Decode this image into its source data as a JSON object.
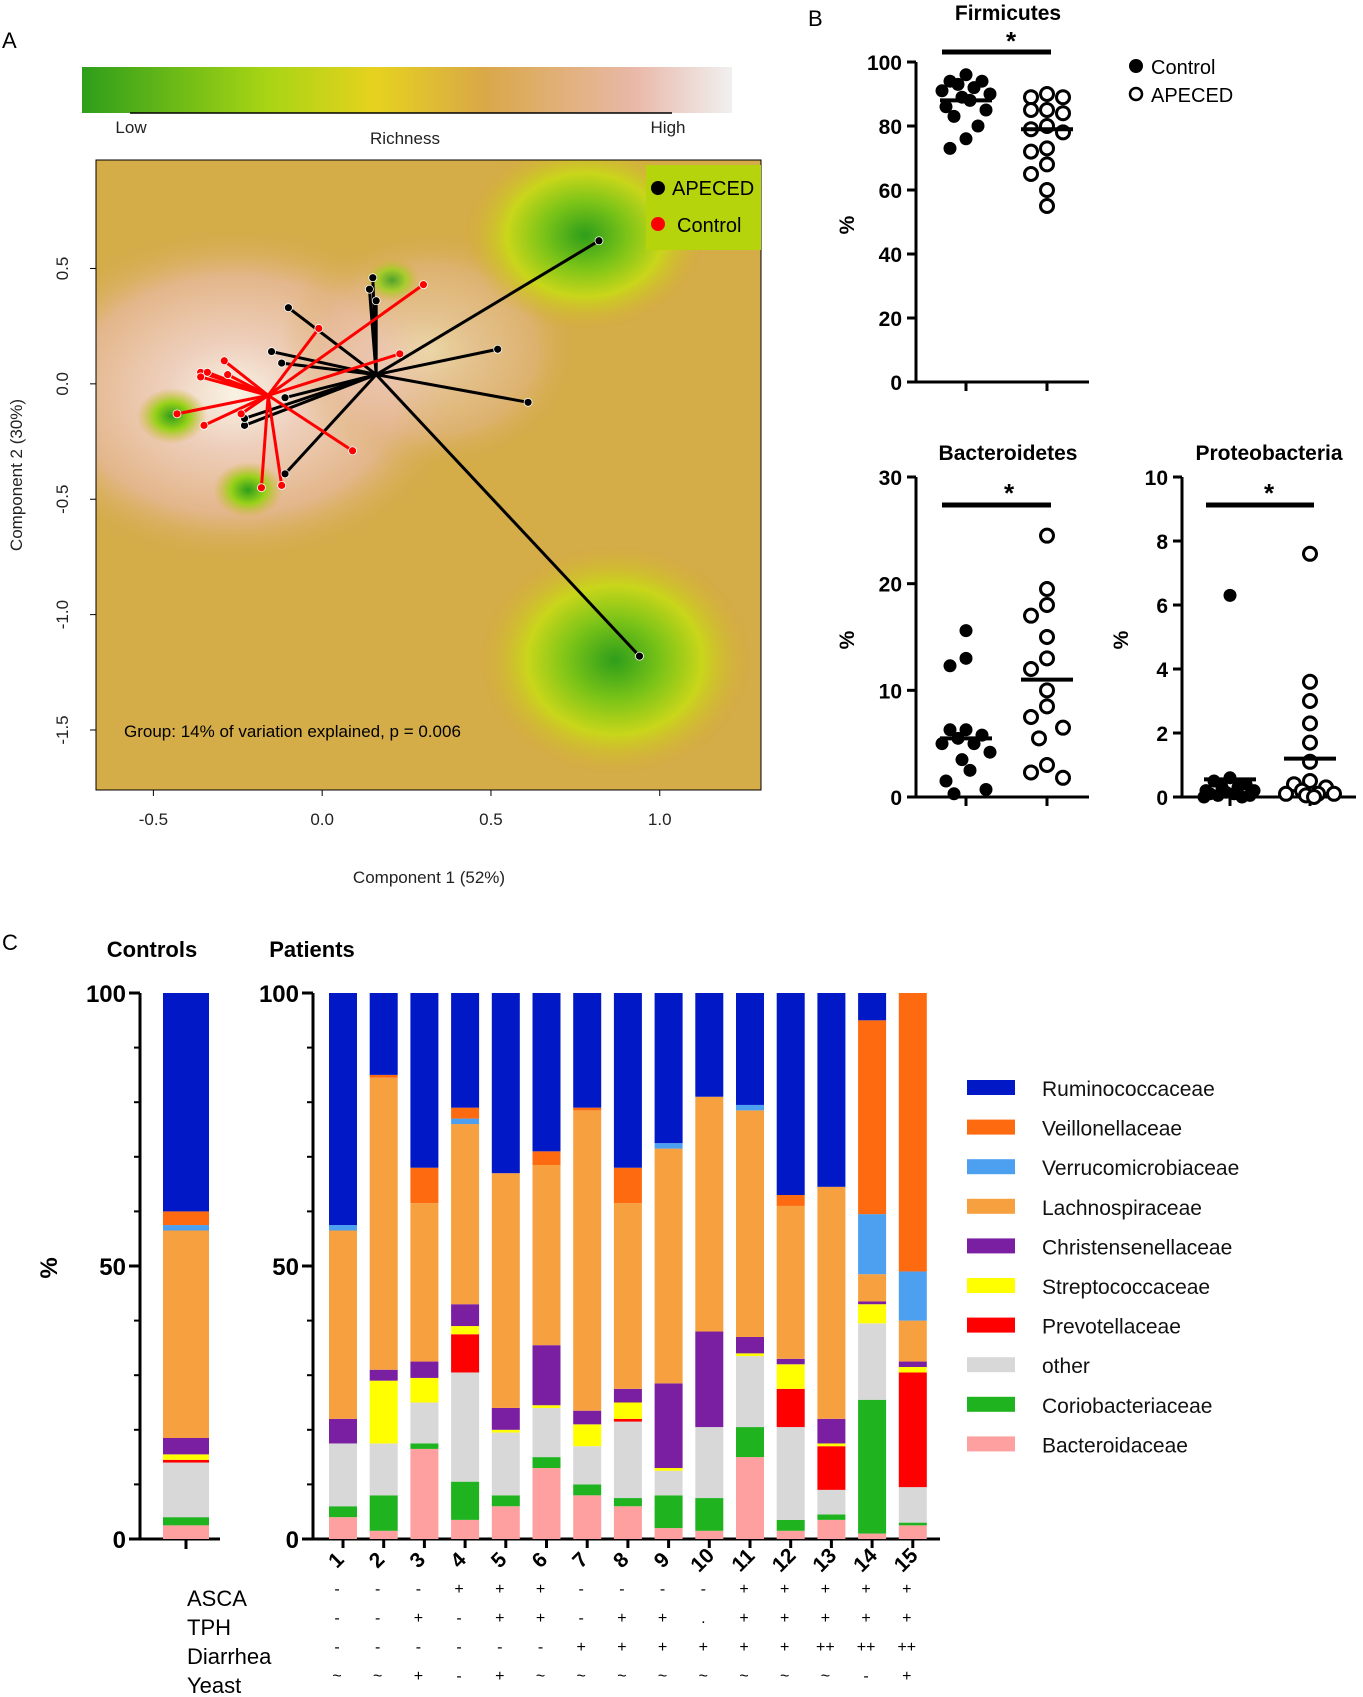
{
  "figure": {
    "panel_labels": {
      "a": "A",
      "b": "B",
      "c": "C"
    }
  },
  "chart_data": [
    {
      "id": "A",
      "type": "scatter",
      "title": "",
      "xlabel": "Component 1 (52%)",
      "ylabel": "Component 2 (30%)",
      "xlim": [
        -0.67,
        1.3
      ],
      "ylim": [
        -1.76,
        0.97
      ],
      "xticks": [
        "-0.5",
        "0.0",
        "0.5",
        "1.0"
      ],
      "xtick_values": [
        -0.5,
        0.0,
        0.5,
        1.0
      ],
      "yticks": [
        "0.5",
        "0.0",
        "-0.5",
        "-1.0",
        "-1.5"
      ],
      "ytick_values": [
        0.5,
        0.0,
        -0.5,
        -1.0,
        -1.5
      ],
      "colorbar": {
        "low": "Low",
        "high": "High",
        "title": "Richness",
        "colors": [
          "#2e9e1a",
          "#a6d414",
          "#e6d21e",
          "#d9a848",
          "#e9b8a8",
          "#f0f0f0"
        ]
      },
      "legend": [
        {
          "label": "APECED",
          "color": "#000000"
        },
        {
          "label": "Control",
          "color": "#ff0000"
        }
      ],
      "annotation": "Group: 14%  of variation explained, p = 0.006",
      "centroids": {
        "APECED": [
          0.16,
          0.04
        ],
        "Control": [
          -0.16,
          -0.05
        ]
      },
      "series": [
        {
          "name": "APECED",
          "color": "#000000",
          "points": [
            [
              0.82,
              0.62
            ],
            [
              0.94,
              -1.18
            ],
            [
              0.61,
              -0.08
            ],
            [
              0.52,
              0.15
            ],
            [
              0.15,
              0.46
            ],
            [
              0.14,
              0.41
            ],
            [
              0.16,
              0.36
            ],
            [
              -0.1,
              0.33
            ],
            [
              -0.15,
              0.14
            ],
            [
              -0.12,
              0.09
            ],
            [
              -0.23,
              -0.18
            ],
            [
              -0.23,
              -0.15
            ],
            [
              -0.11,
              -0.06
            ],
            [
              -0.11,
              -0.39
            ]
          ]
        },
        {
          "name": "Control",
          "color": "#ff0000",
          "points": [
            [
              0.3,
              0.43
            ],
            [
              -0.01,
              0.24
            ],
            [
              0.23,
              0.13
            ],
            [
              -0.29,
              0.1
            ],
            [
              -0.36,
              0.05
            ],
            [
              -0.36,
              0.03
            ],
            [
              -0.34,
              0.05
            ],
            [
              -0.28,
              0.04
            ],
            [
              -0.43,
              -0.13
            ],
            [
              -0.35,
              -0.18
            ],
            [
              -0.24,
              -0.13
            ],
            [
              0.09,
              -0.29
            ],
            [
              -0.18,
              -0.45
            ],
            [
              -0.12,
              -0.44
            ]
          ]
        }
      ]
    },
    {
      "id": "B1",
      "type": "scatter",
      "title": "Firmicutes",
      "ylabel": "%",
      "ylim": [
        0,
        100
      ],
      "yticks": [
        0,
        20,
        40,
        60,
        80,
        100
      ],
      "groups": [
        "Control",
        "APECED"
      ],
      "significance": "*",
      "legend": [
        {
          "label": "Control",
          "marker": "filled"
        },
        {
          "label": "APECED",
          "marker": "open"
        }
      ],
      "series": [
        {
          "name": "Control",
          "marker": "filled",
          "median": 88,
          "values": [
            96,
            94,
            94,
            93,
            92,
            91,
            90,
            89,
            88,
            86,
            85,
            83,
            80,
            76,
            73
          ]
        },
        {
          "name": "APECED",
          "marker": "open",
          "median": 79,
          "values": [
            90,
            89,
            89,
            85,
            85,
            84,
            80,
            79,
            78,
            73,
            72,
            68,
            65,
            60,
            55
          ]
        }
      ]
    },
    {
      "id": "B2",
      "type": "scatter",
      "title": "Bacteroidetes",
      "ylabel": "%",
      "ylim": [
        0,
        30
      ],
      "yticks": [
        0,
        10,
        20,
        30
      ],
      "groups": [
        "Control",
        "APECED"
      ],
      "significance": "*",
      "series": [
        {
          "name": "Control",
          "marker": "filled",
          "median": 5.5,
          "values": [
            15.6,
            13.0,
            12.3,
            6.3,
            6.3,
            5.8,
            5.5,
            5.0,
            5.0,
            4.2,
            3.5,
            2.5,
            1.5,
            0.7,
            0.3
          ]
        },
        {
          "name": "APECED",
          "marker": "open",
          "median": 11,
          "values": [
            24.5,
            19.5,
            18.0,
            17.0,
            15.0,
            13.0,
            12.0,
            10.0,
            8.5,
            7.5,
            6.5,
            5.5,
            3.0,
            2.3,
            1.8
          ]
        }
      ]
    },
    {
      "id": "B3",
      "type": "scatter",
      "title": "Proteobacteria",
      "ylabel": "%",
      "ylim": [
        0,
        10
      ],
      "yticks": [
        0,
        2,
        4,
        6,
        8,
        10
      ],
      "groups": [
        "Control",
        "APECED"
      ],
      "significance": "*",
      "series": [
        {
          "name": "Control",
          "marker": "filled",
          "median": 0.55,
          "values": [
            6.3,
            0.6,
            0.5,
            0.4,
            0.3,
            0.3,
            0.2,
            0.2,
            0.15,
            0.1,
            0.1,
            0.05,
            0.05,
            0.0,
            0.0
          ]
        },
        {
          "name": "APECED",
          "marker": "open",
          "median": 1.2,
          "values": [
            7.6,
            3.6,
            3.0,
            2.3,
            1.7,
            1.1,
            0.5,
            0.4,
            0.3,
            0.2,
            0.1,
            0.1,
            0.1,
            0.05,
            0.0
          ]
        }
      ]
    },
    {
      "id": "C",
      "type": "bar",
      "stacked": true,
      "controls_title": "Controls",
      "patients_title": "Patients",
      "ylabel": "%",
      "ylim": [
        0,
        100
      ],
      "yticks": [
        0,
        50,
        100
      ],
      "families": [
        "Bacteroidaceae",
        "Coriobacteriaceae",
        "other",
        "Prevotellaceae",
        "Streptococcaceae",
        "Christensenellaceae",
        "Lachnospiraceae",
        "Verrucomicrobiaceae",
        "Veillonellaceae",
        "Ruminococcaceae"
      ],
      "colors": [
        "#ffa0a0",
        "#1fb31f",
        "#d8d8d8",
        "#ff0000",
        "#ffff00",
        "#7a1fa2",
        "#f7a040",
        "#4d9ff0",
        "#fd6a10",
        "#0018c6"
      ],
      "legend": [
        "Ruminococcaceae",
        "Veillonellaceae",
        "Verrucomicrobiaceae",
        "Lachnospiraceae",
        "Christensenellaceae",
        "Streptococcaceae",
        "Prevotellaceae",
        "other",
        "Coriobacteriaceae",
        "Bacteroidaceae"
      ],
      "controls": {
        "values": [
          2.5,
          1.5,
          10,
          0.5,
          1,
          3,
          38,
          1,
          2.5,
          40
        ]
      },
      "categories": [
        "1",
        "2",
        "3",
        "4",
        "5",
        "6",
        "7",
        "8",
        "9",
        "10",
        "11",
        "12",
        "13",
        "14",
        "15"
      ],
      "patients": [
        [
          4,
          2,
          11.5,
          0,
          0,
          4.5,
          34.5,
          1,
          0,
          42.5
        ],
        [
          1.5,
          6.5,
          9.5,
          0,
          11.5,
          2,
          53.5,
          0,
          0.5,
          15
        ],
        [
          16.5,
          1,
          7.5,
          0,
          4.5,
          3,
          29,
          0,
          6.5,
          32
        ],
        [
          3.5,
          7,
          20,
          7,
          1.5,
          4,
          33,
          1,
          2,
          21
        ],
        [
          6,
          2,
          11.5,
          0,
          0.5,
          4,
          43,
          0,
          0,
          33
        ],
        [
          13,
          2,
          9,
          0,
          0.5,
          11,
          33,
          0,
          2.5,
          29
        ],
        [
          8,
          2,
          7,
          0,
          4,
          2.5,
          55,
          0,
          0.5,
          21
        ],
        [
          6,
          1.5,
          14,
          0.5,
          3,
          2.5,
          34,
          0,
          6.5,
          32
        ],
        [
          2,
          6,
          4.5,
          0,
          0.5,
          15.5,
          43,
          1,
          0,
          27.5
        ],
        [
          1.5,
          6,
          13,
          0,
          0,
          17.5,
          43,
          0,
          0,
          19
        ],
        [
          15,
          5.5,
          13,
          0,
          0.5,
          3,
          41.5,
          1,
          0,
          20.5
        ],
        [
          1.5,
          2,
          17,
          7,
          4.5,
          1,
          28,
          0,
          2,
          37
        ],
        [
          3.5,
          1,
          4.5,
          8,
          0.5,
          4.5,
          42.5,
          0,
          0,
          35.5
        ],
        [
          1,
          24.5,
          14,
          0,
          3.5,
          0.5,
          5,
          11,
          35.5,
          5
        ],
        [
          2.5,
          0.5,
          6.5,
          21,
          1,
          1,
          7.5,
          9,
          51,
          0
        ]
      ],
      "clinical": {
        "rows": [
          "ASCA",
          "TPH",
          "Diarrhea",
          "Yeast"
        ],
        "values": [
          [
            "-",
            "-",
            "-",
            "+",
            "+",
            "+",
            "-",
            "-",
            "-",
            "-",
            "+",
            "+",
            "+",
            "+",
            "+"
          ],
          [
            "-",
            "-",
            "+",
            "-",
            "+",
            "+",
            "-",
            "+",
            "+",
            ".",
            "+",
            "+",
            "+",
            "+",
            "+"
          ],
          [
            "-",
            "-",
            "-",
            "-",
            "-",
            "-",
            "+",
            "+",
            "+",
            "+",
            "+",
            "+",
            "++",
            "++",
            "++"
          ],
          [
            "~",
            "~",
            "+",
            "-",
            "+",
            "~",
            "~",
            "~",
            "~",
            "~",
            "~",
            "~",
            "~",
            "-",
            "+"
          ]
        ]
      }
    }
  ]
}
